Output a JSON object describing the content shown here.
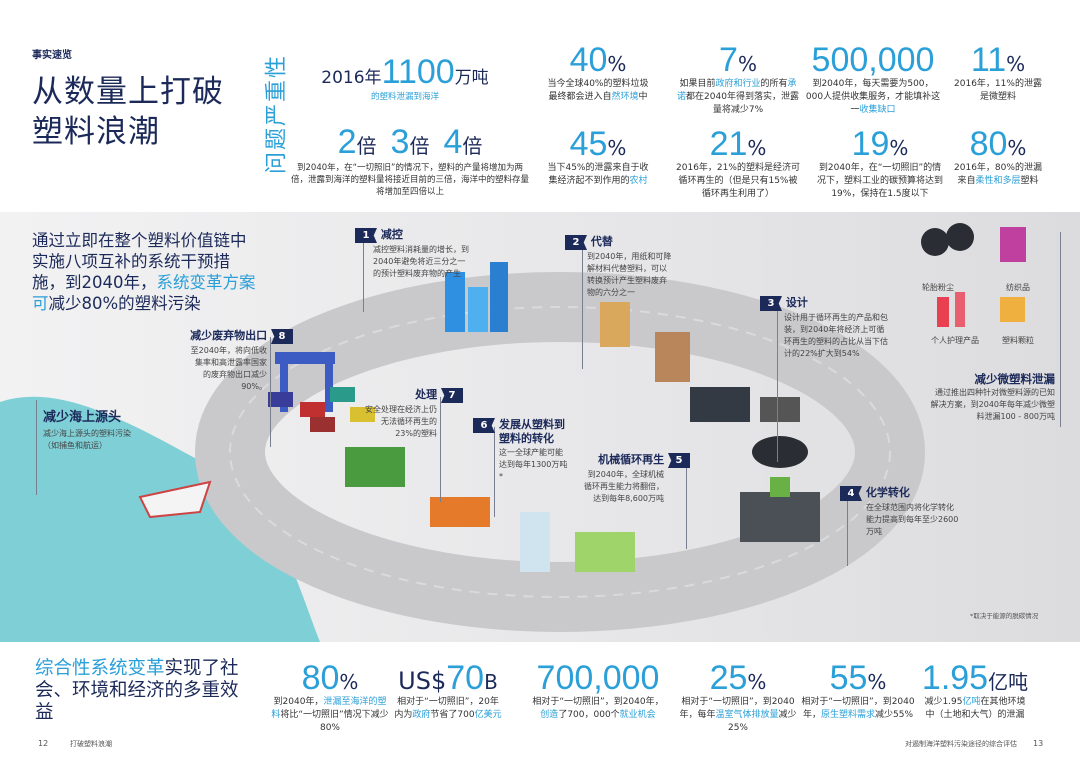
{
  "header": {
    "kicker": "事实速览",
    "title_line1": "从数量上打破",
    "title_line2": "塑料浪潮",
    "vertical_label": "问题严重性"
  },
  "problem": {
    "leak": {
      "prefix": "2016年",
      "value": "1100",
      "unit": "万吨",
      "caption": "的塑料泄漏到海洋"
    },
    "multipliers": [
      {
        "value": "2",
        "unit": "倍"
      },
      {
        "value": "3",
        "unit": "倍"
      },
      {
        "value": "4",
        "unit": "倍"
      }
    ],
    "multiplier_text": "到2040年，在“一切照旧”的情况下，塑料的产量将增加为两倍，泄露到海洋的塑料量将接近目前的三倍，海洋中的塑料存量将增加至四倍以上",
    "stats": [
      {
        "value": "40",
        "unit": "%",
        "segs": [
          {
            "t": "当今全球40%的塑料垃圾最终都会进入自"
          },
          {
            "t": "然环境",
            "hl": true
          },
          {
            "t": "中"
          }
        ]
      },
      {
        "value": "7",
        "unit": "%",
        "segs": [
          {
            "t": "如果目前"
          },
          {
            "t": "政府和行业",
            "hl": true
          },
          {
            "t": "的所有"
          },
          {
            "t": "承诺",
            "hl": true
          },
          {
            "t": "都在2040年得到落实，泄露量将减少7%"
          }
        ]
      },
      {
        "value": "500,000",
        "unit": "",
        "segs": [
          {
            "t": "到2040年，每天需要为500，000人提供收集服务，才能填补这一"
          },
          {
            "t": "收集缺口",
            "hl": true
          }
        ]
      },
      {
        "value": "11",
        "unit": "%",
        "segs": [
          {
            "t": "2016年，11%的泄露是微塑料"
          }
        ]
      },
      {
        "value": "45",
        "unit": "%",
        "segs": [
          {
            "t": "当下45%的泄露来自于收集经济起不到作用的"
          },
          {
            "t": "农村",
            "hl": true
          }
        ]
      },
      {
        "value": "21",
        "unit": "%",
        "segs": [
          {
            "t": "2016年，21%的塑料是经济可循环再生的（但是只有15%被循环再生利用了）"
          }
        ]
      },
      {
        "value": "19",
        "unit": "%",
        "segs": [
          {
            "t": "到2040年，在“一切照旧”的情况下，塑料工业的碳预算将达到19%，保持在1.5度以下"
          }
        ]
      },
      {
        "value": "80",
        "unit": "%",
        "segs": [
          {
            "t": "2016年，80%的泄漏来自"
          },
          {
            "t": "柔性和多层",
            "hl": true
          },
          {
            "t": "塑料"
          }
        ]
      }
    ]
  },
  "intervention": {
    "intro_segs": [
      {
        "t": "通过立即在整个塑料价值链中实施八项互补的系统干预措施，到2040年，"
      },
      {
        "t": "系统变革方案可",
        "hl": true
      },
      {
        "t": "减少80%的塑料污染"
      }
    ],
    "steps": [
      {
        "num": "1",
        "title": "减控",
        "text": "减控塑料消耗量的增长，到2040年避免将近三分之一的预计塑料废弃物的产生"
      },
      {
        "num": "2",
        "title": "代替",
        "text": "到2040年，用纸和可降解材料代替塑料，可以转换预计产生塑料废弃物的六分之一"
      },
      {
        "num": "3",
        "title": "设计",
        "text": "设计用于循环再生的产品和包装，到2040年将经济上可循环再生的塑料的占比从当下估计的22%扩大到54%"
      },
      {
        "num": "4",
        "title": "化学转化",
        "text": "在全球范围内将化学转化能力提高到每年至少2600万吨"
      },
      {
        "num": "5",
        "title": "机械循环再生",
        "text": "到2040年，全球机械循环再生能力将翻倍，达到每年8,600万吨"
      },
      {
        "num": "6",
        "title": "发展从塑料到塑料的转化",
        "text": "这一全球产能可能达到每年1300万吨*"
      },
      {
        "num": "7",
        "title": "处理",
        "text": "安全处理在经济上仍无法循环再生的23%的塑料"
      },
      {
        "num": "8",
        "title": "减少废弃物出口",
        "text": "至2040年，将向低收集率和高泄露率国家的废弃物出口减少90%。"
      }
    ],
    "sea": {
      "title": "减少海上源头",
      "text": "减少海上源头的塑料污染（如捕鱼和航运）"
    },
    "micro": {
      "items": [
        "轮胎粉尘",
        "纺织品",
        "个人护理产品",
        "塑料颗粒"
      ],
      "title": "减少微塑料泄漏",
      "text": "通过推出四种针对微塑料源的已知解决方案，到2040年每年减少微塑料泄漏100 - 800万吨"
    },
    "footnote": "*取决于能源的脱碳情况"
  },
  "benefits": {
    "title_segs": [
      {
        "t": "综合性系统变革",
        "hl": true
      },
      {
        "t": "实现了社会、环境和经济的多重效益"
      }
    ],
    "stats": [
      {
        "pre": "",
        "value": "80",
        "unit": "%",
        "segs": [
          {
            "t": "到2040年，"
          },
          {
            "t": "泄漏至海洋的塑料",
            "hl": true
          },
          {
            "t": "将比“一切照旧”情况下减少80%"
          }
        ]
      },
      {
        "pre": "US$",
        "value": "70",
        "unit": "B",
        "segs": [
          {
            "t": "相对于“一切照旧”，20年内为"
          },
          {
            "t": "政府",
            "hl": true
          },
          {
            "t": "节省了700"
          },
          {
            "t": "亿美元",
            "hl": true
          }
        ]
      },
      {
        "pre": "",
        "value": "700,000",
        "unit": "",
        "segs": [
          {
            "t": "相对于“一切照旧”，到2040年，"
          },
          {
            "t": "创造",
            "hl": true
          },
          {
            "t": "了700，000个"
          },
          {
            "t": "就业机会",
            "hl": true
          }
        ]
      },
      {
        "pre": "",
        "value": "25",
        "unit": "%",
        "segs": [
          {
            "t": "相对于“一切照旧”，到2040年，每年"
          },
          {
            "t": "温室气体排放量",
            "hl": true
          },
          {
            "t": "减少25%"
          }
        ]
      },
      {
        "pre": "",
        "value": "55",
        "unit": "%",
        "segs": [
          {
            "t": "相对于“一切照旧”，到2040年，"
          },
          {
            "t": "原生塑料需求",
            "hl": true
          },
          {
            "t": "减少55%"
          }
        ]
      },
      {
        "pre": "",
        "value": "1.95",
        "unit": "亿吨",
        "segs": [
          {
            "t": "减少1.95"
          },
          {
            "t": "亿吨",
            "hl": true
          },
          {
            "t": "在其他环境中（土地和大气）的泄漏"
          }
        ]
      }
    ]
  },
  "footer": {
    "left_page": "12",
    "left_title": "打破塑料浪潮",
    "right_title": "对遏制海洋塑料污染途径的综合评估",
    "right_page": "13"
  },
  "colors": {
    "accent": "#2a9fd8",
    "navy": "#1c2a5a",
    "sea": "#7fd0d6"
  }
}
